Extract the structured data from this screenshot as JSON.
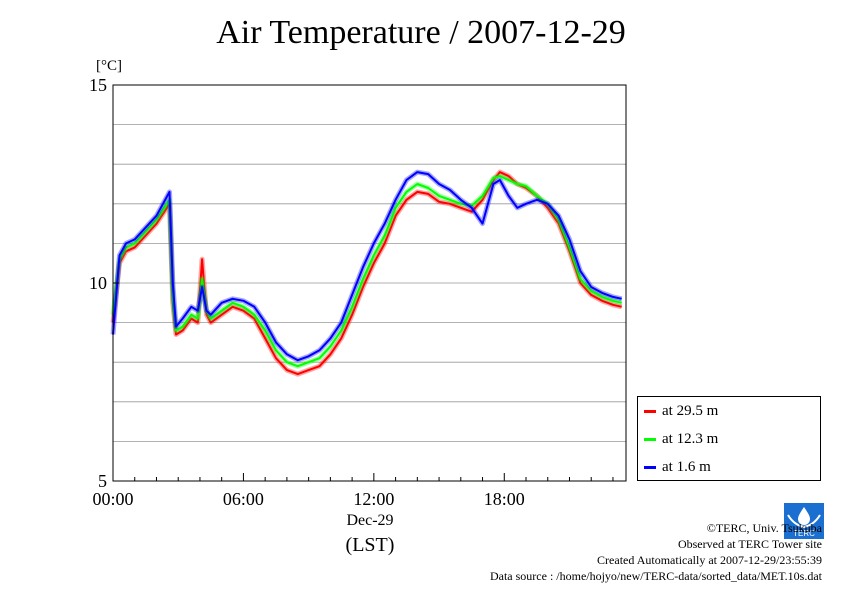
{
  "chart_data": {
    "type": "line",
    "title": "Air Temperature / 2007-12-29",
    "ylabel": "[°C]",
    "xlabel_date": "Dec-29",
    "xlabel_unit": "(LST)",
    "ylim": [
      5,
      15
    ],
    "yticks": [
      "5",
      "10",
      "15"
    ],
    "xlim": [
      0,
      23.5
    ],
    "xticks": [
      {
        "h": 0,
        "label": "00:00"
      },
      {
        "h": 6,
        "label": "06:00"
      },
      {
        "h": 12,
        "label": "12:00"
      },
      {
        "h": 18,
        "label": "18:00"
      }
    ],
    "grid": true,
    "legend_position": "bottom-right",
    "series": [
      {
        "name": "at 29.5 m",
        "color": "#ff0000",
        "x": [
          0,
          0.3,
          0.6,
          1.0,
          1.5,
          2.0,
          2.6,
          2.75,
          2.9,
          3.2,
          3.6,
          3.9,
          4.1,
          4.3,
          4.5,
          5.0,
          5.5,
          6.0,
          6.5,
          7.0,
          7.5,
          8.0,
          8.5,
          9.0,
          9.5,
          10.0,
          10.5,
          11.0,
          11.5,
          12.0,
          12.5,
          13.0,
          13.5,
          14.0,
          14.5,
          15.0,
          15.5,
          16.0,
          16.5,
          17.0,
          17.5,
          17.8,
          18.2,
          18.6,
          19.0,
          19.5,
          20.0,
          20.5,
          21.0,
          21.5,
          22.0,
          22.5,
          23.0,
          23.4
        ],
        "y": [
          9.0,
          10.5,
          10.8,
          10.9,
          11.2,
          11.5,
          12.0,
          9.5,
          8.7,
          8.8,
          9.1,
          9.0,
          10.6,
          9.2,
          9.0,
          9.2,
          9.4,
          9.3,
          9.1,
          8.6,
          8.1,
          7.8,
          7.7,
          7.8,
          7.9,
          8.2,
          8.6,
          9.2,
          9.9,
          10.5,
          11.0,
          11.7,
          12.1,
          12.3,
          12.25,
          12.05,
          12.0,
          11.9,
          11.8,
          12.1,
          12.6,
          12.8,
          12.7,
          12.5,
          12.4,
          12.2,
          11.9,
          11.5,
          10.8,
          10.0,
          9.7,
          9.55,
          9.45,
          9.4
        ]
      },
      {
        "name": "at 12.3 m",
        "color": "#00ff00",
        "x": [
          0,
          0.3,
          0.6,
          1.0,
          1.5,
          2.0,
          2.6,
          2.75,
          2.9,
          3.2,
          3.6,
          3.9,
          4.1,
          4.3,
          4.5,
          5.0,
          5.5,
          6.0,
          6.5,
          7.0,
          7.5,
          8.0,
          8.5,
          9.0,
          9.5,
          10.0,
          10.5,
          11.0,
          11.5,
          12.0,
          12.5,
          13.0,
          13.5,
          14.0,
          14.5,
          15.0,
          15.5,
          16.0,
          16.5,
          17.0,
          17.5,
          17.8,
          18.2,
          18.6,
          19.0,
          19.5,
          20.0,
          20.5,
          21.0,
          21.5,
          22.0,
          22.5,
          23.0,
          23.4
        ],
        "y": [
          9.2,
          10.6,
          10.9,
          11.0,
          11.3,
          11.6,
          12.1,
          9.6,
          8.8,
          8.9,
          9.2,
          9.1,
          10.1,
          9.3,
          9.1,
          9.3,
          9.5,
          9.4,
          9.2,
          8.8,
          8.3,
          8.0,
          7.9,
          8.0,
          8.1,
          8.4,
          8.8,
          9.4,
          10.1,
          10.7,
          11.2,
          11.9,
          12.3,
          12.5,
          12.4,
          12.2,
          12.1,
          12.0,
          11.95,
          12.2,
          12.65,
          12.7,
          12.6,
          12.5,
          12.45,
          12.2,
          12.0,
          11.6,
          10.9,
          10.1,
          9.8,
          9.65,
          9.55,
          9.5
        ]
      },
      {
        "name": "at 1.6 m",
        "color": "#0000ff",
        "x": [
          0,
          0.3,
          0.6,
          1.0,
          1.5,
          2.0,
          2.6,
          2.75,
          2.9,
          3.2,
          3.6,
          3.9,
          4.1,
          4.3,
          4.5,
          5.0,
          5.5,
          6.0,
          6.5,
          7.0,
          7.5,
          8.0,
          8.5,
          9.0,
          9.5,
          10.0,
          10.5,
          11.0,
          11.5,
          12.0,
          12.5,
          13.0,
          13.5,
          14.0,
          14.5,
          15.0,
          15.5,
          16.0,
          16.5,
          17.0,
          17.5,
          17.8,
          18.2,
          18.6,
          19.0,
          19.5,
          20.0,
          20.5,
          21.0,
          21.5,
          22.0,
          22.5,
          23.0,
          23.4
        ],
        "y": [
          8.7,
          10.7,
          11.0,
          11.1,
          11.4,
          11.7,
          12.3,
          10.0,
          8.9,
          9.1,
          9.4,
          9.3,
          9.9,
          9.3,
          9.2,
          9.5,
          9.6,
          9.55,
          9.4,
          9.0,
          8.5,
          8.2,
          8.05,
          8.15,
          8.3,
          8.6,
          9.0,
          9.7,
          10.4,
          11.0,
          11.5,
          12.1,
          12.6,
          12.8,
          12.75,
          12.5,
          12.35,
          12.1,
          11.9,
          11.5,
          12.5,
          12.6,
          12.2,
          11.9,
          12.0,
          12.1,
          12.0,
          11.7,
          11.1,
          10.3,
          9.9,
          9.75,
          9.65,
          9.6
        ]
      }
    ]
  },
  "credits": {
    "line1": "©TERC, Univ. Tsukuba",
    "line2": "Observed at TERC Tower site",
    "line3": "Created Automatically at 2007-12-29/23:55:39",
    "line4": "Data source : /home/hojyo/new/TERC-data/sorted_data/MET.10s.dat"
  },
  "logo": {
    "label": "TERC",
    "color": "#1a6fd0"
  }
}
